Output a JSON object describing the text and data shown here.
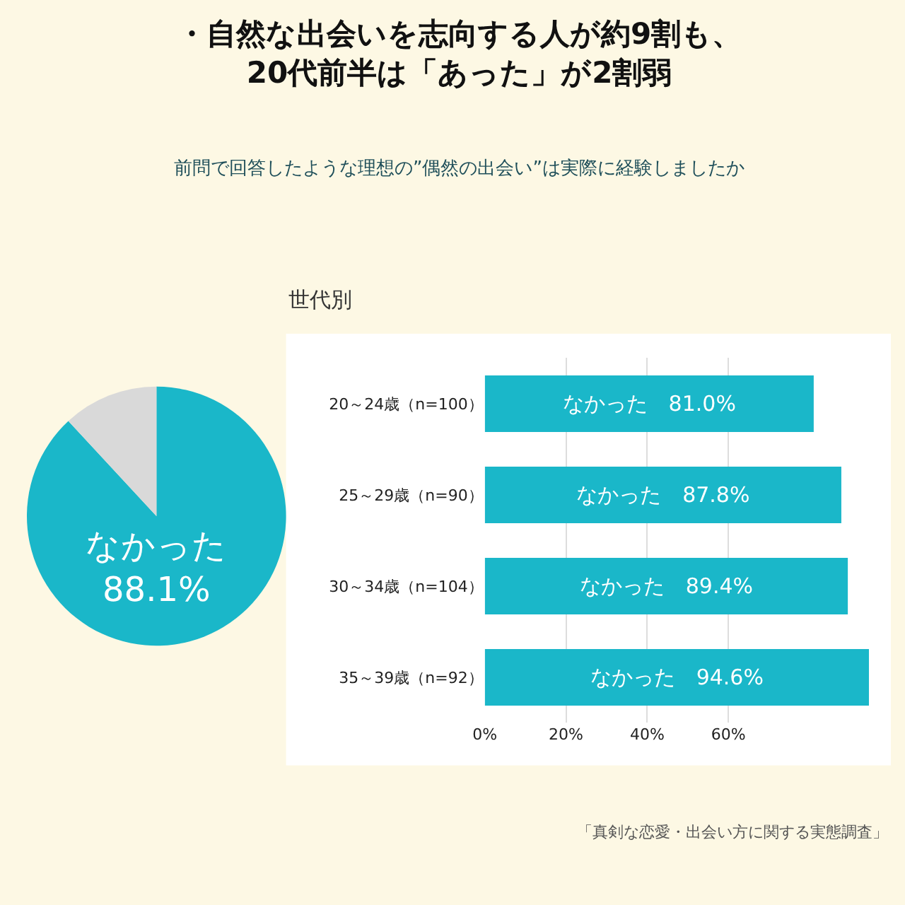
{
  "chart_data": [
    {
      "type": "pie",
      "title": "・自然な出会いを志向する人が約9割も、\n20代前半は「あった」が2割弱",
      "subtitle": "前問で回答したような理想の”偶然の出会い”は実際に経験しましたか",
      "categories": [
        "なかった",
        null
      ],
      "values": [
        88.1,
        11.9
      ],
      "colors": [
        "#1ab7c9",
        "#d9d9d9"
      ],
      "value_labels": [
        "88.1%",
        null
      ]
    },
    {
      "type": "bar",
      "orientation": "horizontal",
      "title": "世代別",
      "categories": [
        "20～24歳（n=100）",
        "25～29歳（n=90）",
        "30～34歳（n=104）",
        "35～39歳（n=92）"
      ],
      "series": [
        {
          "color": "#1ab7c9",
          "values": [
            81.0,
            87.8,
            89.4,
            94.6
          ],
          "value_labels": [
            "なかった　81.0%",
            "なかった　87.8%",
            "なかった　89.4%",
            "なかった　94.6%"
          ]
        }
      ],
      "xlim": [
        0,
        100
      ],
      "xticks": [
        {
          "value": 0,
          "label": "0%"
        },
        {
          "value": 20,
          "label": "20%"
        },
        {
          "value": 40,
          "label": "40%"
        },
        {
          "value": 60,
          "label": "60%"
        }
      ],
      "grid": "x",
      "annotations": [
        "「真剣な恋愛・出会い方に関する実態調査」"
      ]
    }
  ]
}
